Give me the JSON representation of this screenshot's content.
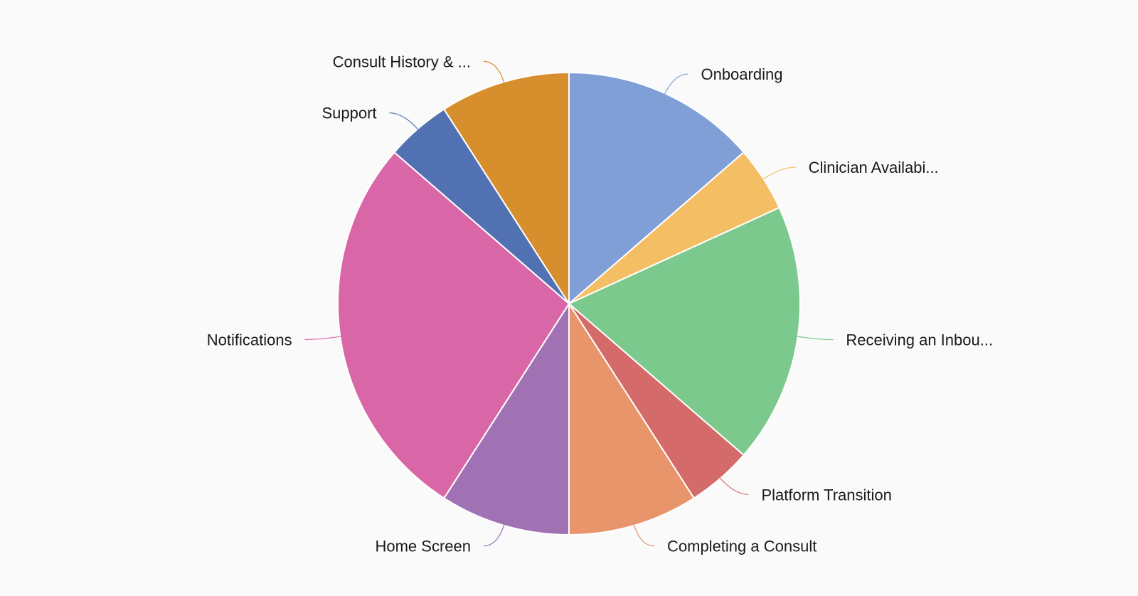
{
  "chart_data": {
    "type": "pie",
    "legend": "none",
    "slices": [
      {
        "label": "Onboarding",
        "value": 3,
        "color": "#7f9fd6"
      },
      {
        "label": "Clinician Availabi...",
        "value": 1,
        "color": "#f4be64"
      },
      {
        "label": "Receiving an Inbou...",
        "value": 4,
        "color": "#7bc98c"
      },
      {
        "label": "Platform Transition",
        "value": 1,
        "color": "#d46a69"
      },
      {
        "label": "Completing a Consult",
        "value": 2,
        "color": "#e8956b"
      },
      {
        "label": "Home Screen",
        "value": 2,
        "color": "#a072b3"
      },
      {
        "label": "Notifications",
        "value": 6,
        "color": "#d966a7"
      },
      {
        "label": "Support",
        "value": 1,
        "color": "#5171b2"
      },
      {
        "label": "Consult History & ...",
        "value": 2,
        "color": "#d78e2c"
      }
    ]
  }
}
